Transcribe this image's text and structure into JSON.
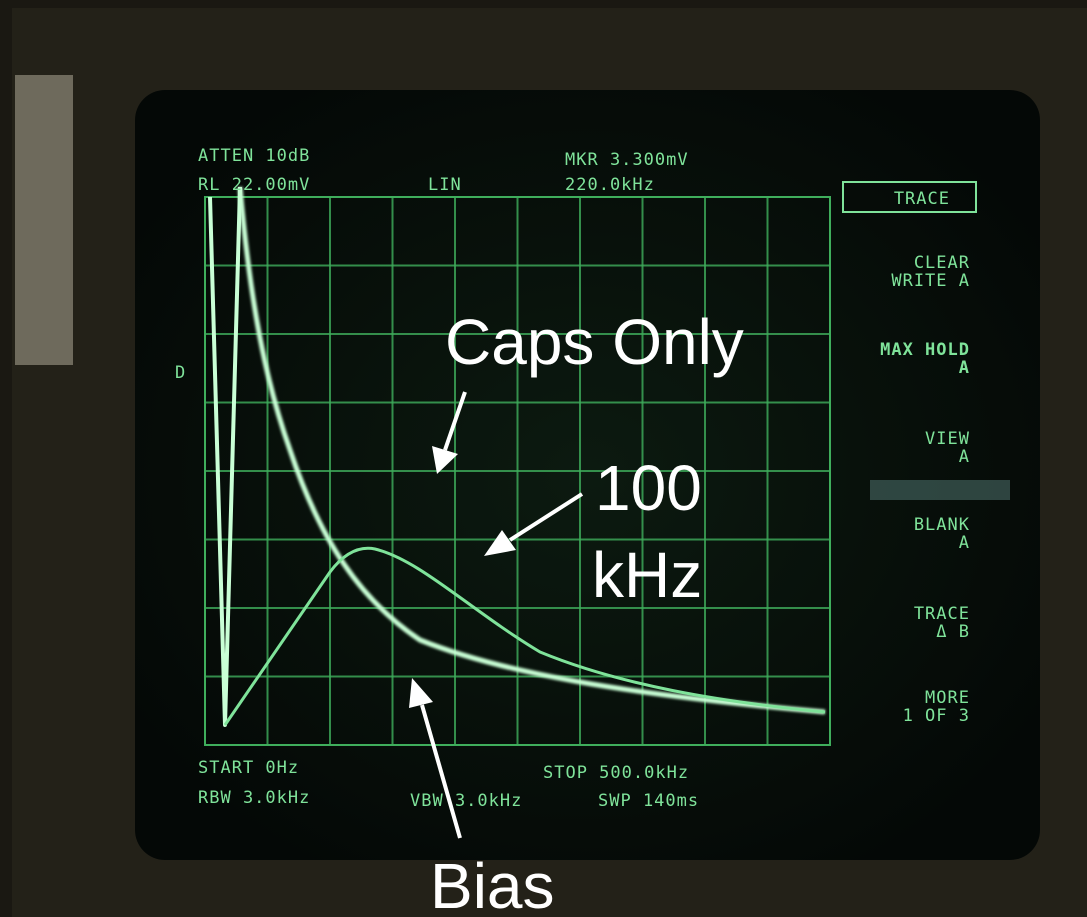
{
  "screen": {
    "header": {
      "atten": "ATTEN 10dB",
      "ref_level": "RL 22.00mV",
      "scale": "LIN",
      "marker": "MKR 3.300mV",
      "marker_freq": "220.0kHz"
    },
    "side_label": "D",
    "softkeys": [
      {
        "lines": [
          "TRACE"
        ]
      },
      {
        "lines": [
          "CLEAR",
          "WRITE A"
        ]
      },
      {
        "lines": [
          "MAX HOLD",
          "A"
        ]
      },
      {
        "lines": [
          "VIEW",
          "A"
        ]
      },
      {
        "lines": [
          "BLANK",
          "A"
        ]
      },
      {
        "lines": [
          "TRACE",
          "Δ B"
        ]
      },
      {
        "lines": [
          "MORE",
          "1 OF 3"
        ]
      }
    ],
    "footer": {
      "start": "START 0Hz",
      "stop": "STOP 500.0kHz",
      "rbw": "RBW 3.0kHz",
      "vbw": "VBW 3.0kHz",
      "sweep": "SWP 140ms"
    }
  },
  "annotations": {
    "caps_only": "Caps Only",
    "freq": [
      "100",
      "kHz"
    ],
    "bias": "Bias"
  }
}
